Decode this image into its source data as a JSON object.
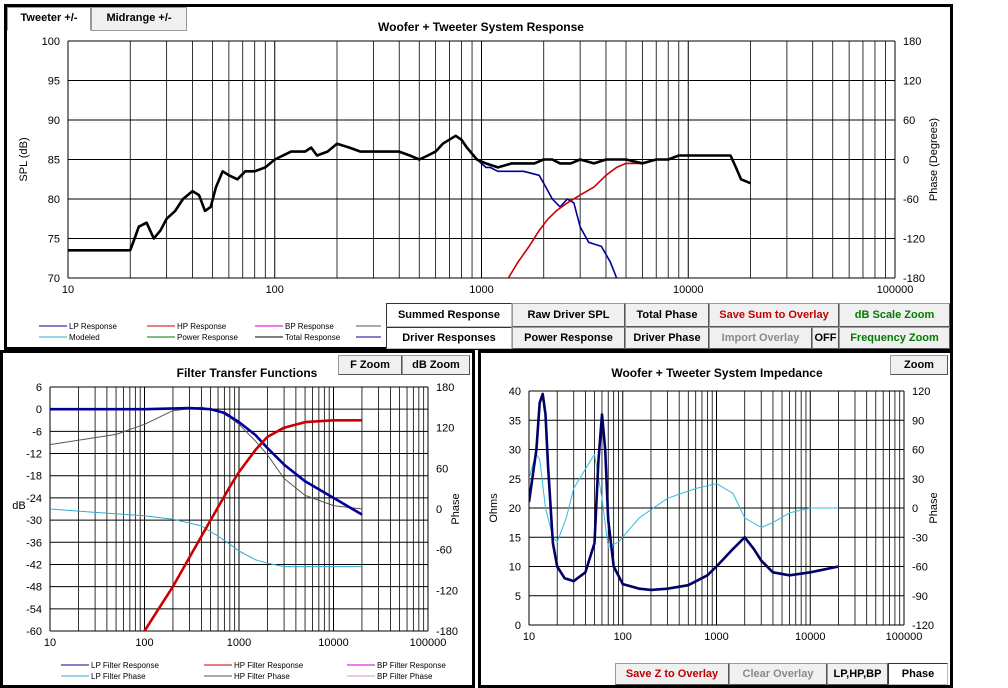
{
  "tabs": [
    {
      "label": "Tweeter +/-"
    },
    {
      "label": "Midrange  +/-"
    }
  ],
  "top_buttons": {
    "summed": "Summed Response",
    "raw": "Raw Driver SPL",
    "total_phase": "Total Phase",
    "save_sum": "Save Sum to Overlay",
    "db_zoom": "dB Scale Zoom",
    "driver_resp": "Driver Responses",
    "power": "Power Response",
    "driver_phase": "Driver Phase",
    "import": "Import Overlay",
    "off": "OFF",
    "freq_zoom": "Frequency Zoom"
  },
  "filter_buttons": {
    "fzoom": "F Zoom",
    "dbzoom": "dB Zoom"
  },
  "imp_buttons": {
    "zoom": "Zoom",
    "save_z": "Save Z to Overlay",
    "clear": "Clear Overlay",
    "lphpbp": "LP,HP,BP",
    "phase": "Phase"
  },
  "colors": {
    "summed": "#000000",
    "lp": "#000099",
    "hp": "#cc0000",
    "lp_phase": "#33aacc",
    "impedance": "#000066",
    "imp_phase": "#33bbdd"
  },
  "legends": {
    "top": [
      {
        "label": "LP Response",
        "color": "#000099"
      },
      {
        "label": "HP Response",
        "color": "#cc0000"
      },
      {
        "label": "BP Response",
        "color": "#cc00cc"
      },
      {
        "label": "Modeled",
        "color": "#33aacc"
      },
      {
        "label": "Power Response",
        "color": "#007700"
      },
      {
        "label": "Total Response",
        "color": "#000000"
      }
    ],
    "filter": [
      {
        "label": "LP Filter Response",
        "color": "#000099"
      },
      {
        "label": "HP Filter Response",
        "color": "#cc0000"
      },
      {
        "label": "BP Filter Response",
        "color": "#cc00cc"
      },
      {
        "label": "LP Filter Phase",
        "color": "#33aacc"
      },
      {
        "label": "HP Filter Phase",
        "color": "#555555"
      },
      {
        "label": "BP Filter Phase",
        "color": "#cc99cc"
      }
    ]
  },
  "chart_data": [
    {
      "type": "line",
      "title": "Woofer + Tweeter    System Response",
      "xlabel": "",
      "ylabel": "SPL (dB)",
      "y2label": "Phase (Degrees)",
      "xscale": "log",
      "xlim": [
        10,
        100000
      ],
      "ylim": [
        70,
        100
      ],
      "y2lim": [
        -180,
        180
      ],
      "xticks": [
        10,
        100,
        1000,
        10000,
        100000
      ],
      "xtick_labels": [
        "10",
        "100",
        "1000",
        "10000",
        "100000"
      ],
      "yticks": [
        70,
        75,
        80,
        85,
        90,
        95,
        100
      ],
      "y2ticks": [
        -180,
        -120,
        -60,
        0,
        60,
        120,
        180
      ],
      "grid": true,
      "series": [
        {
          "key": "total",
          "color": "#000000",
          "width": 2.6,
          "points": [
            [
              10,
              73.5
            ],
            [
              20,
              73.5
            ],
            [
              21,
              75
            ],
            [
              22,
              76.5
            ],
            [
              24,
              77
            ],
            [
              26,
              75
            ],
            [
              28,
              76
            ],
            [
              30,
              77.5
            ],
            [
              33,
              78.5
            ],
            [
              36,
              80
            ],
            [
              40,
              81
            ],
            [
              43,
              80.5
            ],
            [
              46,
              78.5
            ],
            [
              49,
              79
            ],
            [
              52,
              81.5
            ],
            [
              56,
              83.5
            ],
            [
              60,
              83
            ],
            [
              66,
              82.5
            ],
            [
              72,
              83.5
            ],
            [
              80,
              83.5
            ],
            [
              90,
              84
            ],
            [
              100,
              85
            ],
            [
              120,
              86
            ],
            [
              140,
              86
            ],
            [
              150,
              86.5
            ],
            [
              160,
              85.5
            ],
            [
              180,
              86
            ],
            [
              200,
              87
            ],
            [
              230,
              86.5
            ],
            [
              260,
              86
            ],
            [
              300,
              86
            ],
            [
              350,
              86
            ],
            [
              400,
              86
            ],
            [
              450,
              85.5
            ],
            [
              500,
              85
            ],
            [
              550,
              85.5
            ],
            [
              600,
              86
            ],
            [
              650,
              87
            ],
            [
              750,
              88
            ],
            [
              800,
              87.5
            ],
            [
              850,
              86.5
            ],
            [
              950,
              85
            ],
            [
              1050,
              84.5
            ],
            [
              1200,
              84
            ],
            [
              1400,
              84.5
            ],
            [
              1600,
              84.5
            ],
            [
              1800,
              84.5
            ],
            [
              2000,
              85
            ],
            [
              2200,
              85
            ],
            [
              2400,
              84.5
            ],
            [
              2700,
              84.5
            ],
            [
              3000,
              85
            ],
            [
              3500,
              84.5
            ],
            [
              4000,
              85
            ],
            [
              5000,
              85
            ],
            [
              6000,
              84.5
            ],
            [
              7000,
              85
            ],
            [
              8000,
              85
            ],
            [
              9000,
              85.5
            ],
            [
              10000,
              85.5
            ],
            [
              12000,
              85.5
            ],
            [
              14000,
              85.5
            ],
            [
              16000,
              85.5
            ],
            [
              17000,
              84
            ],
            [
              18000,
              82.5
            ],
            [
              20000,
              82
            ]
          ]
        },
        {
          "key": "lp",
          "color": "#000099",
          "width": 1.6,
          "points": [
            [
              950,
              85
            ],
            [
              1050,
              84
            ],
            [
              1100,
              84
            ],
            [
              1200,
              83.5
            ],
            [
              1400,
              83.5
            ],
            [
              1600,
              83.5
            ],
            [
              1900,
              83
            ],
            [
              2000,
              82
            ],
            [
              2200,
              80
            ],
            [
              2400,
              79
            ],
            [
              2600,
              80
            ],
            [
              2800,
              79.5
            ],
            [
              3000,
              76.5
            ],
            [
              3300,
              74.5
            ],
            [
              3800,
              74
            ],
            [
              4200,
              72
            ],
            [
              4500,
              70
            ]
          ]
        },
        {
          "key": "hp",
          "color": "#cc0000",
          "width": 1.6,
          "points": [
            [
              1350,
              70
            ],
            [
              1500,
              72
            ],
            [
              1700,
              74
            ],
            [
              1900,
              76
            ],
            [
              2100,
              77.5
            ],
            [
              2300,
              78.5
            ],
            [
              2600,
              79.5
            ],
            [
              3000,
              80.5
            ],
            [
              3500,
              81.5
            ],
            [
              4000,
              83
            ],
            [
              4500,
              84
            ],
            [
              5000,
              84.5
            ],
            [
              6000,
              84.5
            ],
            [
              7000,
              85
            ],
            [
              8000,
              85
            ],
            [
              9000,
              85.5
            ]
          ]
        }
      ]
    },
    {
      "type": "line",
      "title": "Filter Transfer  Functions",
      "xlabel": "",
      "ylabel": "dB",
      "y2label": "Phase",
      "xscale": "log",
      "xlim": [
        10,
        100000
      ],
      "ylim": [
        -60,
        6
      ],
      "y2lim": [
        -180,
        180
      ],
      "xticks": [
        10,
        100,
        1000,
        10000,
        100000
      ],
      "xtick_labels": [
        "10",
        "100",
        "1000",
        "10000",
        "100000"
      ],
      "yticks": [
        6,
        0,
        -6,
        -12,
        -18,
        -24,
        -30,
        -36,
        -42,
        -48,
        -54,
        -60
      ],
      "y2ticks": [
        180,
        120,
        60,
        0,
        -60,
        -120,
        -180
      ],
      "grid": true,
      "series": [
        {
          "key": "lp_resp",
          "axis": "left",
          "color": "#000099",
          "width": 2.6,
          "points": [
            [
              10,
              0
            ],
            [
              100,
              0
            ],
            [
              300,
              0.3
            ],
            [
              500,
              0
            ],
            [
              700,
              -1
            ],
            [
              1000,
              -3.5
            ],
            [
              1500,
              -7
            ],
            [
              2000,
              -10.5
            ],
            [
              3000,
              -15
            ],
            [
              5000,
              -19.5
            ],
            [
              10000,
              -24
            ],
            [
              20000,
              -28.5
            ]
          ]
        },
        {
          "key": "hp_resp",
          "axis": "right",
          "color": "#cc0000",
          "width": 2.6,
          "points": [
            [
              100,
              -60
            ],
            [
              200,
              -48
            ],
            [
              300,
              -40
            ],
            [
              500,
              -30
            ],
            [
              800,
              -21
            ],
            [
              1000,
              -17
            ],
            [
              1500,
              -11
            ],
            [
              2000,
              -7.5
            ],
            [
              3000,
              -5
            ],
            [
              5000,
              -3.5
            ],
            [
              10000,
              -3
            ],
            [
              20000,
              -3
            ]
          ]
        },
        {
          "key": "lp_phase",
          "axis": "right",
          "color": "#33aacc",
          "width": 1,
          "points": [
            [
              10,
              0
            ],
            [
              30,
              -5
            ],
            [
              100,
              -10
            ],
            [
              200,
              -15
            ],
            [
              400,
              -25
            ],
            [
              600,
              -40
            ],
            [
              800,
              -52
            ],
            [
              1000,
              -62
            ],
            [
              1500,
              -75
            ],
            [
              2000,
              -80
            ],
            [
              3000,
              -85
            ],
            [
              5000,
              -85
            ],
            [
              10000,
              -85
            ],
            [
              20000,
              -85
            ]
          ]
        },
        {
          "key": "hp_phase",
          "axis": "right",
          "color": "#555555",
          "width": 1,
          "points": [
            [
              10,
              95
            ],
            [
              50,
              110
            ],
            [
              100,
              125
            ],
            [
              200,
              145
            ],
            [
              400,
              150
            ],
            [
              600,
              145
            ],
            [
              800,
              135
            ],
            [
              1000,
              125
            ],
            [
              1500,
              100
            ],
            [
              2000,
              80
            ],
            [
              3000,
              45
            ],
            [
              5000,
              20
            ],
            [
              10000,
              5
            ],
            [
              20000,
              0
            ]
          ]
        }
      ]
    },
    {
      "type": "line",
      "title": "Woofer + Tweeter    System Impedance",
      "xlabel": "",
      "ylabel": "Ohms",
      "y2label": "Phase",
      "xscale": "log",
      "xlim": [
        10,
        100000
      ],
      "ylim": [
        0,
        40
      ],
      "y2lim": [
        -120,
        120
      ],
      "xticks": [
        10,
        100,
        1000,
        10000,
        100000
      ],
      "xtick_labels": [
        "10",
        "100",
        "1000",
        "10000",
        "100000"
      ],
      "yticks": [
        0,
        5,
        10,
        15,
        20,
        25,
        30,
        35,
        40
      ],
      "y2ticks": [
        -120,
        -90,
        -60,
        -30,
        0,
        30,
        60,
        90,
        120
      ],
      "grid": true,
      "series": [
        {
          "key": "impedance",
          "axis": "left",
          "color": "#000066",
          "width": 2.6,
          "points": [
            [
              10,
              21
            ],
            [
              12,
              30
            ],
            [
              13,
              38
            ],
            [
              14,
              39.5
            ],
            [
              15,
              36
            ],
            [
              16,
              27
            ],
            [
              18,
              14
            ],
            [
              20,
              10
            ],
            [
              24,
              8
            ],
            [
              30,
              7.5
            ],
            [
              40,
              9
            ],
            [
              50,
              14
            ],
            [
              55,
              28
            ],
            [
              60,
              36
            ],
            [
              65,
              30
            ],
            [
              70,
              18
            ],
            [
              80,
              10
            ],
            [
              100,
              7
            ],
            [
              150,
              6.2
            ],
            [
              200,
              6
            ],
            [
              300,
              6.2
            ],
            [
              500,
              6.8
            ],
            [
              800,
              8.5
            ],
            [
              1000,
              10
            ],
            [
              1500,
              13
            ],
            [
              2000,
              15
            ],
            [
              2500,
              13
            ],
            [
              3000,
              11
            ],
            [
              4000,
              9
            ],
            [
              6000,
              8.5
            ],
            [
              10000,
              9
            ],
            [
              20000,
              10
            ]
          ]
        },
        {
          "key": "imp_phase",
          "axis": "right",
          "color": "#33bbdd",
          "width": 1,
          "points": [
            [
              10,
              30
            ],
            [
              11,
              45
            ],
            [
              12,
              55
            ],
            [
              13,
              50
            ],
            [
              15,
              0
            ],
            [
              18,
              -30
            ],
            [
              20,
              -35
            ],
            [
              25,
              -10
            ],
            [
              30,
              20
            ],
            [
              40,
              40
            ],
            [
              50,
              55
            ],
            [
              60,
              10
            ],
            [
              70,
              -40
            ],
            [
              90,
              -35
            ],
            [
              150,
              -10
            ],
            [
              300,
              10
            ],
            [
              600,
              20
            ],
            [
              1000,
              25
            ],
            [
              1500,
              15
            ],
            [
              2000,
              -10
            ],
            [
              3000,
              -20
            ],
            [
              4000,
              -15
            ],
            [
              6000,
              -5
            ],
            [
              10000,
              0
            ],
            [
              20000,
              0
            ]
          ]
        }
      ]
    }
  ]
}
